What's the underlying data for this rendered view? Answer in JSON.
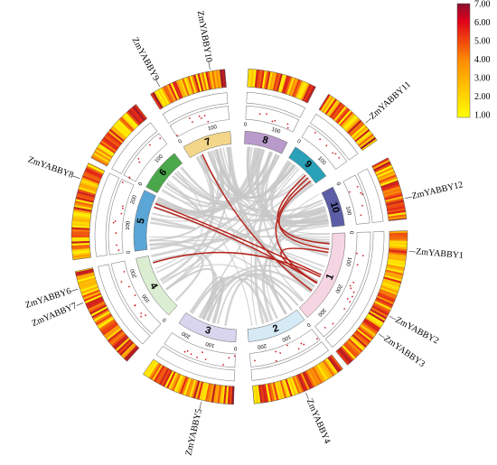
{
  "chromosomes": [
    {
      "label": "1",
      "ticks": [
        "0",
        "100",
        "200",
        "300"
      ]
    },
    {
      "label": "2",
      "ticks": [
        "0",
        "100",
        "200"
      ]
    },
    {
      "label": "3",
      "ticks": [
        "0",
        "100",
        "200"
      ]
    },
    {
      "label": "4",
      "ticks": [
        "0",
        "100",
        "200"
      ]
    },
    {
      "label": "5",
      "ticks": [
        "0",
        "100",
        "200"
      ]
    },
    {
      "label": "6",
      "ticks": [
        "0",
        "100"
      ]
    },
    {
      "label": "7",
      "ticks": [
        "0",
        "100"
      ]
    },
    {
      "label": "8",
      "ticks": [
        "0",
        "100"
      ]
    },
    {
      "label": "9",
      "ticks": [
        "0",
        "100"
      ]
    },
    {
      "label": "10",
      "ticks": [
        "0",
        "100"
      ]
    }
  ],
  "genes": [
    {
      "label": "ZmYABBY1"
    },
    {
      "label": "ZmYABBY2"
    },
    {
      "label": "ZmYABBY3"
    },
    {
      "label": "ZmYABBY4"
    },
    {
      "label": "ZmYABBY5"
    },
    {
      "label": "ZmYABBY6"
    },
    {
      "label": "ZmYABBY7"
    },
    {
      "label": "ZmYABBY8"
    },
    {
      "label": "ZmYABBY9"
    },
    {
      "label": "ZmYABBY10"
    },
    {
      "label": "ZmYABBY11"
    },
    {
      "label": "ZmYABBY12"
    }
  ],
  "legend": {
    "ticks": [
      "7.00",
      "6.00",
      "5.00",
      "4.00",
      "3.00",
      "2.00",
      "1.00"
    ]
  }
}
